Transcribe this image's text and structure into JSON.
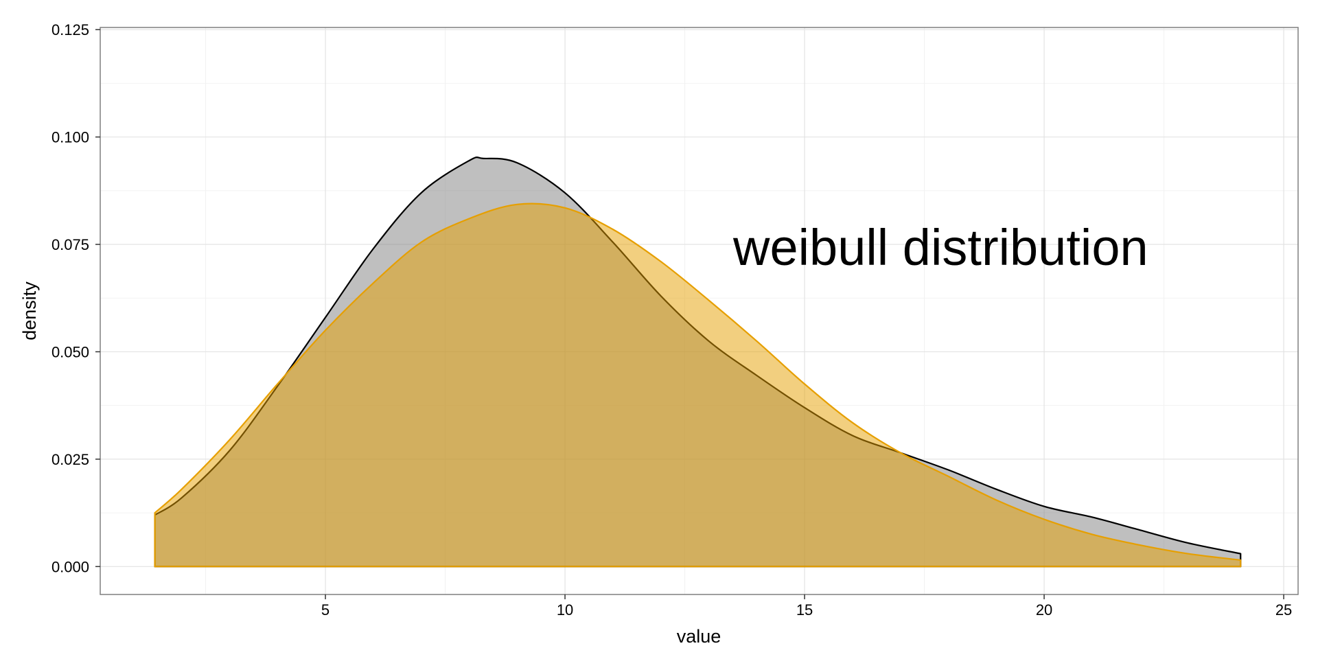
{
  "chart_data": {
    "type": "area",
    "title": "",
    "annotation": "weibull distribution",
    "xlabel": "value",
    "ylabel": "density",
    "xlim": [
      0.3,
      25.3
    ],
    "ylim": [
      -0.0065,
      0.1255
    ],
    "x_ticks": [
      5,
      10,
      15,
      20,
      25
    ],
    "x_tick_labels": [
      "5",
      "10",
      "15",
      "20",
      "25"
    ],
    "y_ticks": [
      0,
      0.025,
      0.05,
      0.075,
      0.1,
      0.125
    ],
    "y_tick_labels": [
      "0.000",
      "0.025",
      "0.050",
      "0.075",
      "0.100",
      "0.125"
    ],
    "grid": true,
    "legend": "none",
    "series": [
      {
        "color": "#000000",
        "fill": "#808080",
        "points": [
          [
            1.44,
            0.012
          ],
          [
            2.0,
            0.016
          ],
          [
            3.0,
            0.027
          ],
          [
            4.0,
            0.042
          ],
          [
            5.0,
            0.058
          ],
          [
            6.0,
            0.074
          ],
          [
            7.0,
            0.087
          ],
          [
            8.0,
            0.0945
          ],
          [
            8.3,
            0.095
          ],
          [
            9.0,
            0.094
          ],
          [
            10.0,
            0.087
          ],
          [
            11.0,
            0.0755
          ],
          [
            12.0,
            0.063
          ],
          [
            13.0,
            0.0525
          ],
          [
            14.0,
            0.0445
          ],
          [
            15.0,
            0.037
          ],
          [
            16.0,
            0.0305
          ],
          [
            17.0,
            0.0265
          ],
          [
            18.0,
            0.0225
          ],
          [
            19.0,
            0.018
          ],
          [
            20.0,
            0.014
          ],
          [
            21.0,
            0.0115
          ],
          [
            22.0,
            0.0085
          ],
          [
            23.0,
            0.0055
          ],
          [
            24.1,
            0.003
          ]
        ]
      },
      {
        "color": "#E69F00",
        "fill": "#E69F00",
        "points": [
          [
            1.44,
            0.0125
          ],
          [
            2.0,
            0.018
          ],
          [
            3.0,
            0.0295
          ],
          [
            4.0,
            0.0425
          ],
          [
            5.0,
            0.055
          ],
          [
            6.0,
            0.066
          ],
          [
            7.0,
            0.0755
          ],
          [
            8.0,
            0.081
          ],
          [
            9.0,
            0.0843
          ],
          [
            10.0,
            0.0835
          ],
          [
            11.0,
            0.0785
          ],
          [
            12.0,
            0.071
          ],
          [
            13.0,
            0.062
          ],
          [
            14.0,
            0.0525
          ],
          [
            15.0,
            0.0425
          ],
          [
            16.0,
            0.0335
          ],
          [
            17.0,
            0.0265
          ],
          [
            18.0,
            0.021
          ],
          [
            19.0,
            0.0155
          ],
          [
            20.0,
            0.011
          ],
          [
            21.0,
            0.0075
          ],
          [
            22.0,
            0.005
          ],
          [
            23.0,
            0.003
          ],
          [
            24.1,
            0.0015
          ]
        ]
      }
    ]
  }
}
